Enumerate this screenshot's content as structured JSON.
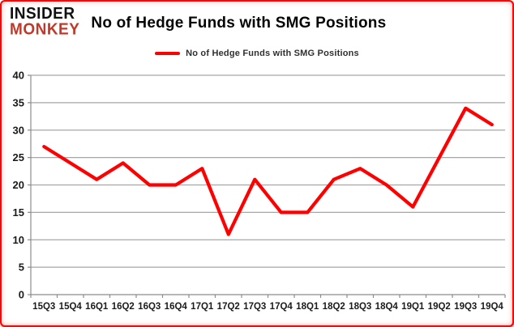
{
  "logo": {
    "line1": "INSIDER",
    "line2": "MONKEY"
  },
  "header": {
    "title": "No of Hedge Funds with SMG Positions"
  },
  "legend": {
    "label": "No of Hedge Funds with SMG Positions"
  },
  "colors": {
    "line": "#ff0000",
    "grid": "#a6a6a6",
    "axis": "#8c8c8c",
    "tick_text": "#1a1a1a",
    "border": "#ff0000",
    "logo_black": "#111111",
    "logo_red": "#c0392b"
  },
  "chart_data": {
    "type": "line",
    "title": "No of Hedge Funds with SMG Positions",
    "categories": [
      "15Q3",
      "15Q4",
      "16Q1",
      "16Q2",
      "16Q3",
      "16Q4",
      "17Q1",
      "17Q2",
      "17Q3",
      "17Q4",
      "18Q1",
      "18Q2",
      "18Q3",
      "18Q4",
      "19Q1",
      "19Q2",
      "19Q3",
      "19Q4"
    ],
    "series": [
      {
        "name": "No of Hedge Funds with SMG Positions",
        "color": "#ff0000",
        "values": [
          27,
          24,
          21,
          24,
          20,
          20,
          23,
          11,
          21,
          15,
          15,
          21,
          23,
          20,
          16,
          25,
          34,
          31
        ]
      }
    ],
    "xlabel": "",
    "ylabel": "",
    "ylim": [
      0,
      40
    ],
    "yticks": [
      0,
      5,
      10,
      15,
      20,
      25,
      30,
      35,
      40
    ],
    "grid": true,
    "legend_position": "top-center"
  }
}
